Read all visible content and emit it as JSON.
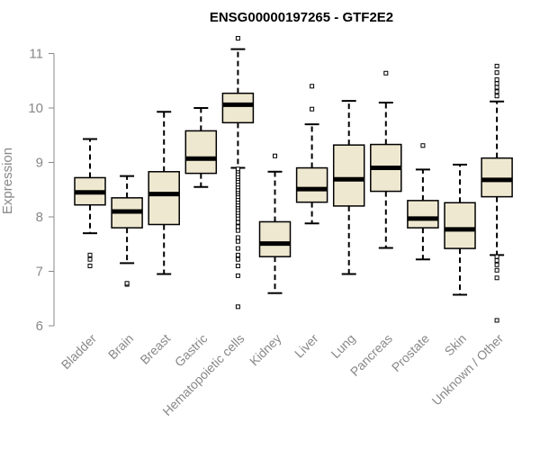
{
  "chart_data": {
    "type": "boxplot",
    "title": "ENSG00000197265 - GTF2E2",
    "xlabel": "",
    "ylabel": "Expression",
    "ylim": [
      6,
      11
    ],
    "yticks": [
      6,
      7,
      8,
      9,
      10,
      11
    ],
    "box_color": "#efe8d0",
    "categories": [
      "Bladder",
      "Brain",
      "Breast",
      "Gastric",
      "Hematopoietic cells",
      "Kidney",
      "Liver",
      "Lung",
      "Pancreas",
      "Prostate",
      "Skin",
      "Unknown / Other"
    ],
    "boxes": [
      {
        "name": "Bladder",
        "q1": 8.22,
        "median": 8.45,
        "q3": 8.72,
        "whisker_low": 7.7,
        "whisker_high": 9.43,
        "outliers": [
          7.1,
          7.22,
          7.3
        ]
      },
      {
        "name": "Brain",
        "q1": 7.8,
        "median": 8.1,
        "q3": 8.35,
        "whisker_low": 7.15,
        "whisker_high": 8.75,
        "outliers": [
          6.76,
          6.78
        ]
      },
      {
        "name": "Breast",
        "q1": 7.86,
        "median": 8.42,
        "q3": 8.83,
        "whisker_low": 6.95,
        "whisker_high": 9.93,
        "outliers": []
      },
      {
        "name": "Gastric",
        "q1": 8.8,
        "median": 9.07,
        "q3": 9.58,
        "whisker_low": 8.55,
        "whisker_high": 10.0,
        "outliers": []
      },
      {
        "name": "Hematopoietic cells",
        "q1": 9.73,
        "median": 10.06,
        "q3": 10.27,
        "whisker_low": 8.9,
        "whisker_high": 11.08,
        "outliers": [
          11.28,
          6.35,
          6.92,
          7.1,
          7.22,
          7.3,
          7.42,
          7.55,
          7.62,
          7.75,
          7.82,
          7.9,
          7.97,
          8.03,
          8.08,
          8.13,
          8.18,
          8.22,
          8.27,
          8.32,
          8.37,
          8.42,
          8.46,
          8.5,
          8.55,
          8.6,
          8.65,
          8.7,
          8.74,
          8.79,
          8.84,
          8.88
        ]
      },
      {
        "name": "Kidney",
        "q1": 7.27,
        "median": 7.51,
        "q3": 7.91,
        "whisker_low": 6.6,
        "whisker_high": 8.83,
        "outliers": [
          9.12
        ]
      },
      {
        "name": "Liver",
        "q1": 8.27,
        "median": 8.51,
        "q3": 8.9,
        "whisker_low": 7.88,
        "whisker_high": 9.7,
        "outliers": [
          9.98,
          10.4
        ]
      },
      {
        "name": "Lung",
        "q1": 8.2,
        "median": 8.69,
        "q3": 9.32,
        "whisker_low": 6.95,
        "whisker_high": 10.13,
        "outliers": []
      },
      {
        "name": "Pancreas",
        "q1": 8.47,
        "median": 8.9,
        "q3": 9.33,
        "whisker_low": 7.43,
        "whisker_high": 10.1,
        "outliers": [
          10.64
        ]
      },
      {
        "name": "Prostate",
        "q1": 7.8,
        "median": 7.97,
        "q3": 8.3,
        "whisker_low": 7.22,
        "whisker_high": 8.87,
        "outliers": [
          9.31
        ]
      },
      {
        "name": "Skin",
        "q1": 7.42,
        "median": 7.77,
        "q3": 8.26,
        "whisker_low": 6.57,
        "whisker_high": 8.96,
        "outliers": []
      },
      {
        "name": "Unknown / Other",
        "q1": 8.37,
        "median": 8.68,
        "q3": 9.08,
        "whisker_low": 7.3,
        "whisker_high": 10.12,
        "outliers": [
          10.77,
          10.65,
          10.52,
          10.45,
          10.38,
          10.3,
          10.22,
          6.1,
          6.88,
          7.02,
          7.12,
          7.2,
          7.27
        ]
      }
    ]
  }
}
